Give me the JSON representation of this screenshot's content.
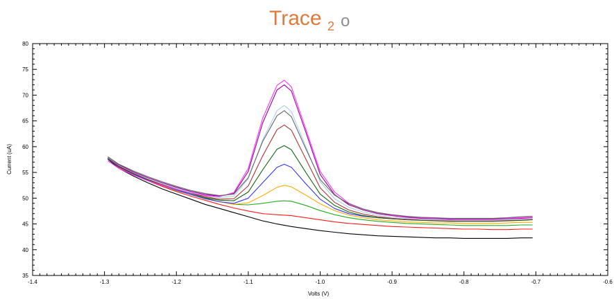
{
  "logo": {
    "text_main": "Trace",
    "text_sub": "2",
    "text_tail": "o",
    "color_main": "#e07a3c",
    "color_tail": "#8a8f96"
  },
  "chart_data": {
    "type": "line",
    "title": "",
    "xlabel": "Volts (V)",
    "ylabel": "Current (uA)",
    "xlim": [
      -1.4,
      -0.6
    ],
    "ylim": [
      35,
      80
    ],
    "x_ticks": [
      -1.4,
      -1.3,
      -1.2,
      -1.1,
      -1.0,
      -0.9,
      -0.8,
      -0.7,
      -0.6
    ],
    "x_tick_labels": [
      "-1.4",
      "-1.3",
      "-1.2",
      "-1.1",
      "-1.0",
      "-0.9",
      "-0.8",
      "-0.7",
      "-0.6"
    ],
    "y_ticks": [
      35,
      40,
      45,
      50,
      55,
      60,
      65,
      70,
      75,
      80
    ],
    "y_tick_labels": [
      "35",
      "40",
      "45",
      "50",
      "55",
      "60",
      "65",
      "70",
      "75",
      "80"
    ],
    "grid": false,
    "legend": "none",
    "series": [
      {
        "color": "#000000",
        "x": [
          -1.295,
          -1.28,
          -1.26,
          -1.24,
          -1.22,
          -1.2,
          -1.18,
          -1.16,
          -1.14,
          -1.12,
          -1.1,
          -1.08,
          -1.06,
          -1.04,
          -1.02,
          -1.0,
          -0.98,
          -0.96,
          -0.94,
          -0.92,
          -0.9,
          -0.88,
          -0.86,
          -0.84,
          -0.82,
          -0.8,
          -0.78,
          -0.76,
          -0.74,
          -0.72,
          -0.705
        ],
        "y": [
          57.5,
          55.8,
          54.3,
          53.0,
          51.8,
          50.8,
          49.8,
          48.8,
          48.0,
          47.2,
          46.4,
          45.6,
          45.0,
          44.5,
          44.1,
          43.7,
          43.4,
          43.1,
          42.9,
          42.7,
          42.6,
          42.5,
          42.4,
          42.3,
          42.3,
          42.2,
          42.2,
          42.2,
          42.2,
          42.3,
          42.3
        ]
      },
      {
        "color": "#ff1a1a",
        "x": [
          -1.295,
          -1.28,
          -1.26,
          -1.24,
          -1.22,
          -1.2,
          -1.18,
          -1.16,
          -1.14,
          -1.12,
          -1.1,
          -1.08,
          -1.06,
          -1.04,
          -1.02,
          -1.0,
          -0.98,
          -0.96,
          -0.94,
          -0.92,
          -0.9,
          -0.88,
          -0.86,
          -0.84,
          -0.82,
          -0.8,
          -0.78,
          -0.76,
          -0.74,
          -0.72,
          -0.705
        ],
        "y": [
          57.6,
          56.0,
          54.6,
          53.4,
          52.3,
          51.3,
          50.4,
          49.6,
          48.8,
          48.1,
          47.5,
          47.0,
          46.8,
          46.6,
          46.2,
          45.8,
          45.4,
          45.1,
          44.9,
          44.7,
          44.5,
          44.4,
          44.3,
          44.2,
          44.1,
          44.0,
          44.0,
          43.9,
          43.9,
          44.0,
          44.0
        ]
      },
      {
        "color": "#22aa22",
        "x": [
          -1.295,
          -1.28,
          -1.26,
          -1.24,
          -1.22,
          -1.2,
          -1.18,
          -1.16,
          -1.14,
          -1.12,
          -1.1,
          -1.08,
          -1.06,
          -1.05,
          -1.04,
          -1.02,
          -1.0,
          -0.98,
          -0.96,
          -0.94,
          -0.92,
          -0.9,
          -0.88,
          -0.86,
          -0.84,
          -0.82,
          -0.8,
          -0.78,
          -0.76,
          -0.74,
          -0.72,
          -0.705
        ],
        "y": [
          57.7,
          56.2,
          54.8,
          53.6,
          52.5,
          51.5,
          50.7,
          50.0,
          49.3,
          48.8,
          48.7,
          49.0,
          49.4,
          49.5,
          49.4,
          48.6,
          47.6,
          46.8,
          46.2,
          45.8,
          45.5,
          45.3,
          45.1,
          45.0,
          44.9,
          44.8,
          44.7,
          44.7,
          44.7,
          44.7,
          44.8,
          44.8
        ]
      },
      {
        "color": "#ffaa00",
        "x": [
          -1.295,
          -1.28,
          -1.26,
          -1.24,
          -1.22,
          -1.2,
          -1.18,
          -1.16,
          -1.14,
          -1.12,
          -1.1,
          -1.08,
          -1.06,
          -1.05,
          -1.04,
          -1.02,
          -1.0,
          -0.98,
          -0.96,
          -0.94,
          -0.92,
          -0.9,
          -0.88,
          -0.86,
          -0.84,
          -0.82,
          -0.8,
          -0.78,
          -0.76,
          -0.74,
          -0.72,
          -0.705
        ],
        "y": [
          57.8,
          56.3,
          54.9,
          53.7,
          52.6,
          51.6,
          50.7,
          49.9,
          49.3,
          48.8,
          49.1,
          50.5,
          52.1,
          52.5,
          52.2,
          50.6,
          48.9,
          47.6,
          46.7,
          46.2,
          45.8,
          45.6,
          45.4,
          45.3,
          45.2,
          45.2,
          45.1,
          45.1,
          45.1,
          45.2,
          45.3,
          45.3
        ]
      },
      {
        "color": "#3333ff",
        "x": [
          -1.295,
          -1.28,
          -1.26,
          -1.24,
          -1.22,
          -1.2,
          -1.18,
          -1.16,
          -1.14,
          -1.12,
          -1.1,
          -1.08,
          -1.06,
          -1.05,
          -1.04,
          -1.02,
          -1.0,
          -0.98,
          -0.96,
          -0.94,
          -0.92,
          -0.9,
          -0.88,
          -0.86,
          -0.84,
          -0.82,
          -0.8,
          -0.78,
          -0.76,
          -0.74,
          -0.72,
          -0.705
        ],
        "y": [
          57.6,
          56.1,
          54.7,
          53.5,
          52.5,
          51.6,
          50.7,
          49.9,
          49.3,
          49.0,
          50.0,
          53.0,
          56.0,
          56.6,
          56.0,
          52.8,
          49.8,
          48.0,
          47.0,
          46.5,
          46.2,
          46.0,
          45.9,
          45.8,
          45.7,
          45.7,
          45.6,
          45.6,
          45.6,
          45.7,
          45.8,
          45.9
        ]
      },
      {
        "color": "#116611",
        "x": [
          -1.295,
          -1.28,
          -1.26,
          -1.24,
          -1.22,
          -1.2,
          -1.18,
          -1.16,
          -1.14,
          -1.12,
          -1.1,
          -1.08,
          -1.06,
          -1.05,
          -1.04,
          -1.02,
          -1.0,
          -0.98,
          -0.96,
          -0.94,
          -0.92,
          -0.9,
          -0.88,
          -0.86,
          -0.84,
          -0.82,
          -0.8,
          -0.78,
          -0.76,
          -0.74,
          -0.72,
          -0.705
        ],
        "y": [
          57.7,
          56.2,
          54.8,
          53.6,
          52.6,
          51.7,
          50.9,
          50.1,
          49.6,
          49.5,
          51.2,
          55.5,
          59.5,
          60.2,
          59.4,
          55.0,
          50.8,
          48.6,
          47.3,
          46.6,
          46.2,
          46.0,
          45.8,
          45.7,
          45.6,
          45.5,
          45.5,
          45.5,
          45.5,
          45.6,
          45.7,
          45.8
        ]
      },
      {
        "color": "#aa3333",
        "x": [
          -1.295,
          -1.28,
          -1.26,
          -1.24,
          -1.22,
          -1.2,
          -1.18,
          -1.16,
          -1.14,
          -1.12,
          -1.1,
          -1.08,
          -1.06,
          -1.05,
          -1.04,
          -1.02,
          -1.0,
          -0.98,
          -0.96,
          -0.94,
          -0.92,
          -0.9,
          -0.88,
          -0.86,
          -0.84,
          -0.82,
          -0.8,
          -0.78,
          -0.76,
          -0.74,
          -0.72,
          -0.705
        ],
        "y": [
          57.8,
          56.3,
          54.9,
          53.7,
          52.7,
          51.8,
          51.0,
          50.3,
          49.8,
          49.9,
          52.4,
          58.2,
          63.3,
          64.2,
          63.2,
          57.6,
          52.0,
          49.2,
          47.7,
          46.9,
          46.4,
          46.1,
          45.9,
          45.8,
          45.7,
          45.6,
          45.6,
          45.6,
          45.6,
          45.7,
          45.8,
          45.9
        ]
      },
      {
        "color": "#a8d0e8",
        "x": [
          -1.295,
          -1.28,
          -1.26,
          -1.24,
          -1.22,
          -1.2,
          -1.18,
          -1.16,
          -1.14,
          -1.12,
          -1.1,
          -1.08,
          -1.06,
          -1.05,
          -1.04,
          -1.02,
          -1.0,
          -0.98,
          -0.96,
          -0.94,
          -0.92,
          -0.9,
          -0.88,
          -0.86,
          -0.84,
          -0.82,
          -0.8,
          -0.78,
          -0.76,
          -0.74,
          -0.72,
          -0.705
        ],
        "y": [
          57.9,
          56.4,
          55.0,
          53.8,
          52.8,
          51.9,
          51.1,
          50.5,
          50.1,
          50.4,
          53.8,
          61.3,
          67.0,
          68.0,
          66.8,
          60.0,
          53.2,
          49.9,
          48.2,
          47.3,
          46.7,
          46.3,
          46.1,
          45.9,
          45.8,
          45.7,
          45.7,
          45.7,
          45.7,
          45.8,
          45.9,
          46.0
        ]
      },
      {
        "color": "#990099",
        "x": [
          -1.295,
          -1.28,
          -1.26,
          -1.24,
          -1.22,
          -1.2,
          -1.18,
          -1.16,
          -1.14,
          -1.12,
          -1.1,
          -1.08,
          -1.06,
          -1.05,
          -1.04,
          -1.02,
          -1.0,
          -0.98,
          -0.96,
          -0.94,
          -0.92,
          -0.9,
          -0.88,
          -0.86,
          -0.84,
          -0.82,
          -0.8,
          -0.78,
          -0.76,
          -0.74,
          -0.72,
          -0.705
        ],
        "y": [
          58.0,
          56.5,
          55.1,
          54.0,
          53.0,
          52.1,
          51.3,
          50.7,
          50.4,
          50.9,
          55.2,
          64.6,
          71.0,
          72.0,
          70.8,
          62.8,
          54.6,
          50.7,
          48.7,
          47.7,
          47.0,
          46.6,
          46.3,
          46.1,
          46.0,
          45.9,
          45.9,
          45.9,
          45.9,
          46.0,
          46.1,
          46.2
        ]
      },
      {
        "color": "#ff33ff",
        "x": [
          -1.295,
          -1.28,
          -1.26,
          -1.24,
          -1.22,
          -1.2,
          -1.18,
          -1.16,
          -1.14,
          -1.12,
          -1.1,
          -1.08,
          -1.06,
          -1.05,
          -1.04,
          -1.02,
          -1.0,
          -0.98,
          -0.96,
          -0.94,
          -0.92,
          -0.9,
          -0.88,
          -0.86,
          -0.84,
          -0.82,
          -0.8,
          -0.78,
          -0.76,
          -0.74,
          -0.72,
          -0.705
        ],
        "y": [
          57.2,
          55.8,
          54.5,
          53.4,
          52.5,
          51.7,
          51.0,
          50.5,
          50.3,
          51.1,
          55.8,
          65.5,
          71.9,
          72.9,
          71.6,
          63.4,
          55.2,
          51.2,
          49.0,
          47.9,
          47.2,
          46.7,
          46.4,
          46.2,
          46.1,
          46.0,
          46.0,
          46.0,
          46.0,
          46.1,
          46.2,
          46.3
        ]
      },
      {
        "color": "#666666",
        "x": [
          -1.295,
          -1.28,
          -1.26,
          -1.24,
          -1.22,
          -1.2,
          -1.18,
          -1.16,
          -1.14,
          -1.12,
          -1.1,
          -1.08,
          -1.06,
          -1.05,
          -1.04,
          -1.02,
          -1.0,
          -0.98,
          -0.96,
          -0.94,
          -0.92,
          -0.9,
          -0.88,
          -0.86,
          -0.84,
          -0.82,
          -0.8,
          -0.78,
          -0.76,
          -0.74,
          -0.72,
          -0.705
        ],
        "y": [
          58.0,
          56.6,
          55.3,
          54.2,
          53.2,
          52.3,
          51.5,
          50.9,
          50.5,
          50.8,
          54.0,
          61.0,
          66.0,
          67.0,
          65.8,
          59.6,
          53.6,
          50.6,
          48.9,
          47.9,
          47.2,
          46.8,
          46.5,
          46.3,
          46.2,
          46.1,
          46.1,
          46.1,
          46.1,
          46.2,
          46.4,
          46.5
        ]
      }
    ]
  }
}
